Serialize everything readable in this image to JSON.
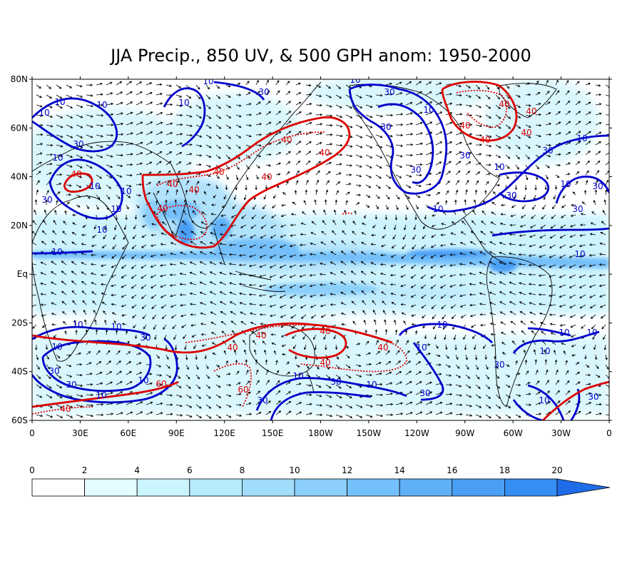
{
  "title": "JJA Precip., 850 UV, & 500 GPH anom: 1950-2000",
  "lat_labels": [
    "80N",
    "60N",
    "40N",
    "20N",
    "Eq",
    "20S",
    "40S",
    "60S"
  ],
  "lon_labels": [
    "0",
    "30E",
    "60E",
    "90E",
    "120E",
    "150E",
    "180W",
    "150W",
    "120W",
    "90W",
    "60W",
    "30W",
    "0"
  ],
  "colorbar": {
    "labels": [
      "0",
      "2",
      "4",
      "6",
      "8",
      "10",
      "12",
      "14",
      "16",
      "18",
      "20"
    ],
    "colors": [
      "#ffffff",
      "#e3fcff",
      "#cbf5fe",
      "#b5ebfd",
      "#a2dcfb",
      "#8ccffb",
      "#74c0fa",
      "#5fb0f7",
      "#4a9ff5",
      "#358ef2",
      "#1f6ce8"
    ]
  },
  "contour_colors": {
    "positive": "#0000cc",
    "negative": "#dd0000"
  },
  "contour_labels": {
    "blue": [
      "10",
      "30"
    ],
    "red": [
      "40",
      "60"
    ]
  },
  "chart_data": {
    "type": "map",
    "fields": [
      "JJA precipitation (shaded)",
      "850 hPa wind vectors",
      "500 hPa geopotential height anomaly contours"
    ],
    "lat_range": [
      -60,
      80
    ],
    "lon_range": [
      0,
      360
    ],
    "shading_levels": [
      0,
      2,
      4,
      6,
      8,
      10,
      12,
      14,
      16,
      18,
      20
    ],
    "contour_levels": [
      -60,
      -40,
      10,
      30
    ]
  }
}
